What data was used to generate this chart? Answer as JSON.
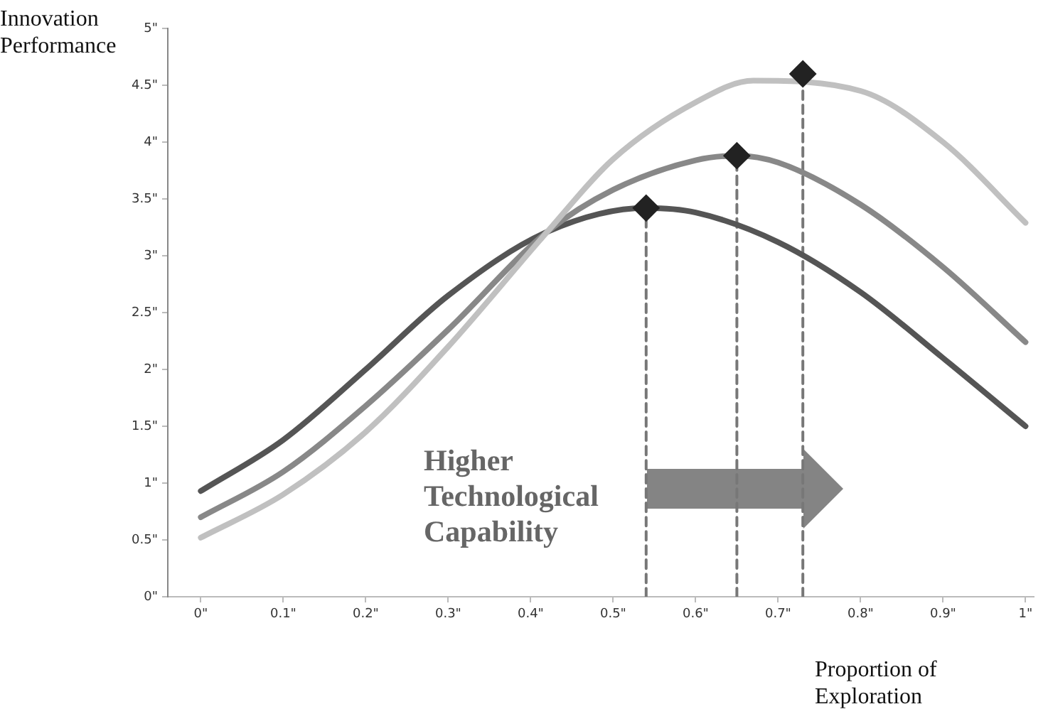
{
  "chart_data": {
    "type": "line",
    "xlabel": "Proportion of Exploration",
    "ylabel": "Innovation Performance",
    "annotations": [
      "Higher Technological Capability"
    ],
    "xlim": [
      -0.04,
      1.01
    ],
    "ylim": [
      0,
      5
    ],
    "xticks": [
      {
        "value": 0,
        "label": "0\""
      },
      {
        "value": 0.1,
        "label": "0.1\""
      },
      {
        "value": 0.2,
        "label": "0.2\""
      },
      {
        "value": 0.3,
        "label": "0.3\""
      },
      {
        "value": 0.4,
        "label": "0.4\""
      },
      {
        "value": 0.5,
        "label": "0.5\""
      },
      {
        "value": 0.6,
        "label": "0.6\""
      },
      {
        "value": 0.7,
        "label": "0.7\""
      },
      {
        "value": 0.8,
        "label": "0.8\""
      },
      {
        "value": 0.9,
        "label": "0.9\""
      },
      {
        "value": 1,
        "label": "1\""
      }
    ],
    "yticks": [
      {
        "value": 0,
        "label": "0\""
      },
      {
        "value": 0.5,
        "label": "0.5\""
      },
      {
        "value": 1,
        "label": "1\""
      },
      {
        "value": 1.5,
        "label": "1.5\""
      },
      {
        "value": 2,
        "label": "2\""
      },
      {
        "value": 2.5,
        "label": "2.5\""
      },
      {
        "value": 3,
        "label": "3\""
      },
      {
        "value": 3.5,
        "label": "3.5\""
      },
      {
        "value": 4,
        "label": "4\""
      },
      {
        "value": 4.5,
        "label": "4.5\""
      },
      {
        "value": 5,
        "label": "5\""
      }
    ],
    "grid": false,
    "marker": "none",
    "line_style": "solid",
    "series": [
      {
        "color": "#c0c0c0",
        "x": [
          0,
          0.1,
          0.2,
          0.3,
          0.42,
          0.5,
          0.6,
          0.67,
          0.8,
          0.9,
          1
        ],
        "values": [
          0.52,
          0.9,
          1.45,
          2.2,
          3.21,
          3.85,
          4.35,
          4.54,
          4.45,
          4.0,
          3.29
        ]
      },
      {
        "color": "#888888",
        "x": [
          0,
          0.1,
          0.2,
          0.3,
          0.42,
          0.5,
          0.6,
          0.65,
          0.7,
          0.8,
          0.9,
          1
        ],
        "values": [
          0.7,
          1.1,
          1.68,
          2.35,
          3.21,
          3.58,
          3.84,
          3.88,
          3.82,
          3.45,
          2.9,
          2.24
        ]
      },
      {
        "color": "#555555",
        "x": [
          0,
          0.1,
          0.2,
          0.3,
          0.42,
          0.54,
          0.6,
          0.7,
          0.8,
          0.9,
          1
        ],
        "values": [
          0.93,
          1.38,
          2.0,
          2.65,
          3.21,
          3.42,
          3.38,
          3.12,
          2.68,
          2.1,
          1.5
        ]
      },
      {
        "type": "line",
        "line_style": "dashed",
        "color": "#777777",
        "x": [
          0.54,
          0.54
        ],
        "values": [
          0,
          3.42
        ]
      },
      {
        "type": "line",
        "line_style": "dashed",
        "color": "#777777",
        "x": [
          0.65,
          0.65
        ],
        "values": [
          0,
          3.88
        ]
      },
      {
        "type": "line",
        "line_style": "dashed",
        "color": "#777777",
        "x": [
          0.73,
          0.73
        ],
        "values": [
          0,
          4.6
        ]
      },
      {
        "type": "scatter",
        "marker": "diamond",
        "color": "#222222",
        "x": [
          0.54,
          0.65,
          0.73
        ],
        "values": [
          3.42,
          3.88,
          4.6
        ]
      }
    ]
  }
}
